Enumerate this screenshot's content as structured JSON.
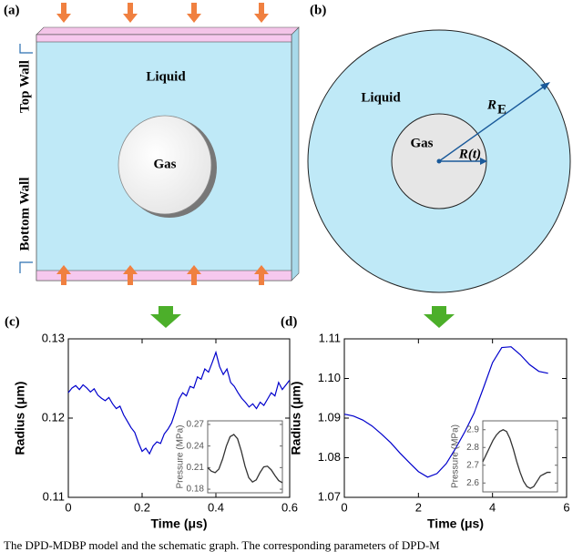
{
  "panels": {
    "a": {
      "label": "(a)",
      "liquid": "Liquid",
      "gas": "Gas",
      "top_wall": "Top Wall",
      "bottom_wall": "Bottom Wall"
    },
    "b": {
      "label": "(b)",
      "liquid": "Liquid",
      "gas": "Gas",
      "radius": "R(t)",
      "outer_radius": "R",
      "outer_radius_sub": "E"
    }
  },
  "caption": "The DPD-MDBP model and the schematic graph. The corresponding parameters of DPD-M",
  "chart_data": [
    {
      "type": "line",
      "panel_label": "(c)",
      "xlabel": "Time (μs)",
      "ylabel": "Radius (μm)",
      "color": "#0000cc",
      "x": [
        0,
        0.01,
        0.02,
        0.03,
        0.04,
        0.05,
        0.06,
        0.07,
        0.08,
        0.09,
        0.1,
        0.11,
        0.12,
        0.13,
        0.14,
        0.15,
        0.16,
        0.17,
        0.18,
        0.19,
        0.2,
        0.21,
        0.22,
        0.23,
        0.24,
        0.25,
        0.26,
        0.27,
        0.28,
        0.29,
        0.3,
        0.31,
        0.32,
        0.33,
        0.34,
        0.35,
        0.36,
        0.37,
        0.38,
        0.39,
        0.4,
        0.41,
        0.42,
        0.43,
        0.44,
        0.45,
        0.46,
        0.47,
        0.48,
        0.49,
        0.5,
        0.51,
        0.52,
        0.53,
        0.54,
        0.55,
        0.56,
        0.57,
        0.58,
        0.59,
        0.6
      ],
      "values": [
        0.1232,
        0.1238,
        0.1241,
        0.1236,
        0.1242,
        0.1238,
        0.1233,
        0.1237,
        0.1229,
        0.1225,
        0.1222,
        0.1226,
        0.1218,
        0.1212,
        0.1215,
        0.1204,
        0.1196,
        0.1188,
        0.1182,
        0.1169,
        0.1158,
        0.1162,
        0.1155,
        0.1165,
        0.117,
        0.1168,
        0.118,
        0.1186,
        0.1194,
        0.1208,
        0.1224,
        0.1232,
        0.1228,
        0.124,
        0.1238,
        0.1252,
        0.1249,
        0.1262,
        0.1258,
        0.127,
        0.1283,
        0.1265,
        0.1255,
        0.1262,
        0.1245,
        0.124,
        0.1232,
        0.1225,
        0.122,
        0.1214,
        0.1218,
        0.1212,
        0.122,
        0.1216,
        0.1224,
        0.1232,
        0.1228,
        0.1245,
        0.1236,
        0.1242,
        0.1248
      ],
      "xlim": [
        0,
        0.6
      ],
      "xticks": [
        0,
        0.2,
        0.4,
        0.6
      ],
      "ylim": [
        0.11,
        0.13
      ],
      "yticks": [
        0.11,
        0.12,
        0.13
      ]
    },
    {
      "type": "line",
      "ylabel": "Pressure (MPa)",
      "color": "#333333",
      "x": [
        0,
        0.05,
        0.1,
        0.15,
        0.2,
        0.25,
        0.3,
        0.35,
        0.4,
        0.45,
        0.5,
        0.55,
        0.6,
        0.65,
        0.7,
        0.75,
        0.8,
        0.85,
        0.9,
        0.95,
        1
      ],
      "values": [
        0.21,
        0.205,
        0.203,
        0.208,
        0.222,
        0.24,
        0.253,
        0.256,
        0.25,
        0.233,
        0.212,
        0.196,
        0.19,
        0.193,
        0.203,
        0.211,
        0.212,
        0.207,
        0.199,
        0.192,
        0.189
      ],
      "xlim": [
        0,
        1
      ],
      "ylim": [
        0.175,
        0.275
      ],
      "yticks": [
        0.18,
        0.21,
        0.24,
        0.27
      ]
    },
    {
      "type": "line",
      "panel_label": "(d)",
      "xlabel": "Time (μs)",
      "ylabel": "Radius (μm)",
      "color": "#0000cc",
      "x": [
        0,
        0.25,
        0.5,
        0.75,
        1,
        1.25,
        1.5,
        1.75,
        2,
        2.25,
        2.5,
        2.75,
        3,
        3.25,
        3.5,
        3.75,
        4,
        4.25,
        4.5,
        4.75,
        5,
        5.25,
        5.5
      ],
      "values": [
        1.091,
        1.0905,
        1.0895,
        1.088,
        1.086,
        1.0838,
        1.0812,
        1.0788,
        1.0765,
        1.0751,
        1.076,
        1.0785,
        1.0823,
        1.0865,
        1.0912,
        1.0975,
        1.104,
        1.1078,
        1.108,
        1.106,
        1.1035,
        1.1018,
        1.1013
      ],
      "xlim": [
        0,
        6
      ],
      "xticks": [
        0,
        2,
        4,
        6
      ],
      "ylim": [
        1.07,
        1.11
      ],
      "yticks": [
        1.07,
        1.08,
        1.09,
        {
          "value": 1.1,
          "label": "1.10"
        },
        1.11
      ]
    },
    {
      "type": "line",
      "ylabel": "Pressure (MPa)",
      "color": "#333333",
      "x": [
        0,
        0.05,
        0.1,
        0.15,
        0.2,
        0.25,
        0.3,
        0.35,
        0.4,
        0.45,
        0.5,
        0.55,
        0.6,
        0.65,
        0.7,
        0.75,
        0.8,
        0.85,
        0.9,
        0.95,
        1
      ],
      "values": [
        2.72,
        2.76,
        2.8,
        2.84,
        2.87,
        2.89,
        2.9,
        2.89,
        2.85,
        2.79,
        2.72,
        2.66,
        2.61,
        2.58,
        2.57,
        2.58,
        2.61,
        2.64,
        2.65,
        2.66,
        2.66
      ],
      "xlim": [
        0,
        1.1
      ],
      "ylim": [
        2.55,
        2.95
      ],
      "yticks": [
        2.6,
        2.7,
        2.8,
        2.9
      ]
    }
  ]
}
